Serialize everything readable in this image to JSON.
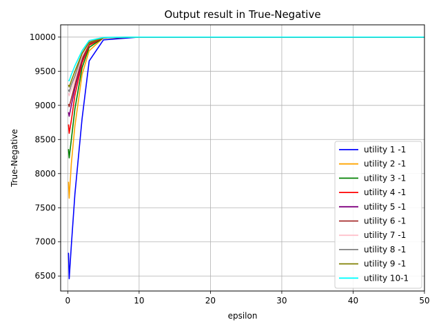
{
  "chart_data": {
    "type": "line",
    "title": "Output result in True-Negative",
    "xlabel": "epsilon",
    "ylabel": "True-Negative",
    "xlim": [
      -1,
      50
    ],
    "ylim": [
      6280,
      10180
    ],
    "xticks": [
      0,
      10,
      20,
      30,
      40,
      50
    ],
    "yticks": [
      6500,
      7000,
      7500,
      8000,
      8500,
      9000,
      9500,
      10000
    ],
    "grid": true,
    "legend_position": "lower right",
    "x": [
      0.1,
      0.2,
      0.5,
      1,
      2,
      3,
      5,
      10,
      50
    ],
    "series": [
      {
        "name": "utility 1 -1",
        "color": "#0000ff",
        "values": [
          6840,
          6460,
          6950,
          7700,
          8800,
          9650,
          9960,
          10000,
          10000
        ]
      },
      {
        "name": "utility 2 -1",
        "color": "#ffa500",
        "values": [
          7880,
          7640,
          8150,
          8700,
          9450,
          9800,
          9990,
          10000,
          10000
        ]
      },
      {
        "name": "utility 3 -1",
        "color": "#008000",
        "values": [
          8360,
          8230,
          8500,
          8950,
          9550,
          9850,
          9990,
          10000,
          10000
        ]
      },
      {
        "name": "utility 4 -1",
        "color": "#ff0000",
        "values": [
          8720,
          8590,
          8780,
          9150,
          9620,
          9880,
          9990,
          10000,
          10000
        ]
      },
      {
        "name": "utility 5 -1",
        "color": "#800080",
        "values": [
          8900,
          8840,
          9000,
          9250,
          9660,
          9900,
          9990,
          10000,
          10000
        ]
      },
      {
        "name": "utility 6 -1",
        "color": "#a52a2a",
        "values": [
          9020,
          8980,
          9100,
          9300,
          9680,
          9900,
          9990,
          10000,
          10000
        ]
      },
      {
        "name": "utility 7 -1",
        "color": "#ffc0cb",
        "values": [
          9180,
          9140,
          9230,
          9380,
          9720,
          9920,
          9995,
          10000,
          10000
        ]
      },
      {
        "name": "utility 8 -1",
        "color": "#808080",
        "values": [
          9230,
          9200,
          9300,
          9430,
          9760,
          9930,
          9995,
          10000,
          10000
        ]
      },
      {
        "name": "utility 9 -1",
        "color": "#808000",
        "values": [
          9300,
          9270,
          9360,
          9500,
          9760,
          9920,
          9990,
          10000,
          10000
        ]
      },
      {
        "name": "utility 10-1",
        "color": "#00ffff",
        "values": [
          9370,
          9360,
          9450,
          9580,
          9800,
          9950,
          9995,
          10000,
          10000
        ]
      }
    ]
  }
}
